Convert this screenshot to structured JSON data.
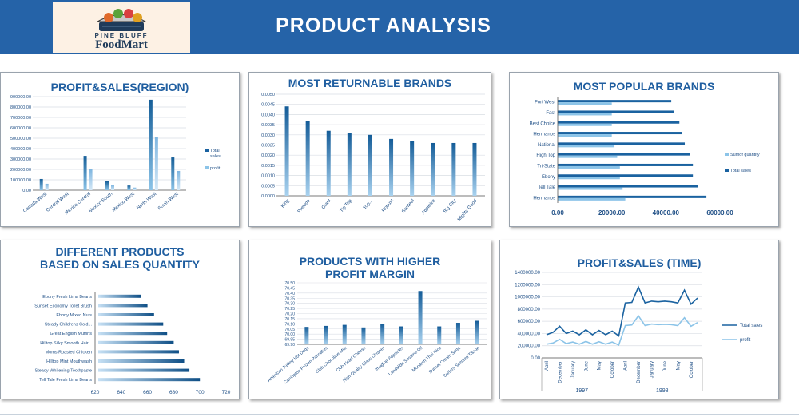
{
  "page": {
    "title": "PRODUCT ANALYSIS"
  },
  "logo": {
    "line1": "PINE BLUFF",
    "line2": "FoodMart"
  },
  "chart_data": [
    {
      "id": "region",
      "type": "bar",
      "title": "PROFIT&SALES(REGION)",
      "categories": [
        "Canada West",
        "Central West",
        "Mexico Central",
        "Mexico South",
        "Mexico West",
        "North West",
        "South West"
      ],
      "series": [
        {
          "name": "Total sales",
          "values": [
            108000,
            0,
            330000,
            85000,
            45000,
            870000,
            315000
          ]
        },
        {
          "name": "profit",
          "values": [
            62000,
            0,
            200000,
            48000,
            25000,
            510000,
            185000
          ]
        }
      ],
      "yticks": [
        "0.00",
        "100000.00",
        "200000.00",
        "300000.00",
        "400000.00",
        "500000.00",
        "600000.00",
        "700000.00",
        "800000.00",
        "900000.00"
      ],
      "ylim": [
        0,
        900000
      ]
    },
    {
      "id": "returnable",
      "type": "bar",
      "title": "MOST RETURNABLE BRANDS",
      "categories": [
        "King",
        "Prelude",
        "Giant",
        "Tip Top",
        "Top...",
        "Robust",
        "Genteel",
        "Appleize",
        "Big City",
        "Mighty Good"
      ],
      "values": [
        0.0044,
        0.0037,
        0.0032,
        0.0031,
        0.003,
        0.0028,
        0.0027,
        0.0026,
        0.0026,
        0.0026
      ],
      "yticks": [
        "0.0000",
        "0.0005",
        "0.0010",
        "0.0015",
        "0.0020",
        "0.0025",
        "0.0030",
        "0.0035",
        "0.0040",
        "0.0045",
        "0.0050"
      ],
      "ylim": [
        0,
        0.005
      ]
    },
    {
      "id": "popular",
      "type": "bar",
      "orientation": "horizontal",
      "title": "MOST POPULAR BRANDS",
      "categories": [
        "Fort West",
        "Fast",
        "Best Choice",
        "Hermanos",
        "National",
        "High Top",
        "Tri-State",
        "Ebony",
        "Tell Tale",
        "Hermanos"
      ],
      "series": [
        {
          "name": "Sumof quantity",
          "values": [
            20000,
            20000,
            20000,
            20000,
            21000,
            22000,
            23000,
            23000,
            24000,
            25000
          ]
        },
        {
          "name": "Total sales",
          "values": [
            42000,
            43000,
            45000,
            46000,
            47000,
            49000,
            50000,
            50000,
            52000,
            55000
          ]
        }
      ],
      "xticks": [
        "0.00",
        "20000.00",
        "40000.00",
        "60000.00"
      ],
      "xlim": [
        0,
        60000
      ]
    },
    {
      "id": "quantity",
      "type": "bar",
      "orientation": "horizontal",
      "title": "DIFFERENT PRODUCTS BASED ON SALES QUANTITY",
      "title_lines": [
        "DIFFERENT PRODUCTS",
        "BASED ON SALES QUANTITY"
      ],
      "categories": [
        "Ebony Fresh Lima Beans",
        "Sunset Economy Toilet Brush",
        "Ebony Mixed Nuts",
        "Steady Childrens Cold...",
        "Great English Muffins",
        "Hilltop Silky Smooth Hair...",
        "Moms Roasted Chicken",
        "Hilltop Mint Mouthwash",
        "Steady Whitening Toothpaste",
        "Tell Tale Fresh Lima Beans"
      ],
      "values": [
        655,
        660,
        665,
        672,
        675,
        680,
        684,
        688,
        692,
        700
      ],
      "xticks": [
        "620",
        "640",
        "660",
        "680",
        "700",
        "720"
      ],
      "xlim": [
        620,
        720
      ]
    },
    {
      "id": "margin",
      "type": "bar",
      "title": "PRODUCTS WITH HIGHER PROFIT MARGIN",
      "title_lines": [
        "PRODUCTS WITH HIGHER",
        "PROFIT MARGIN"
      ],
      "categories": [
        "American Turkey Hot Dogs",
        "Carrington Frozen Pancakes",
        "Club Chocolate Milk",
        "Club Head Cheese",
        "High Quality Glass Cleaner",
        "Imagine Popsicles",
        "Landslide Sesame Oil",
        "Monarch Thai Rice",
        "Sunset Cream Soda",
        "Surfers Scented Tissue"
      ],
      "values": [
        70.07,
        70.08,
        70.09,
        70.065,
        70.1,
        70.075,
        70.42,
        70.075,
        70.11,
        70.13
      ],
      "yticks": [
        "69.90",
        "69.95",
        "70.00",
        "70.05",
        "70.10",
        "70.15",
        "70.20",
        "70.25",
        "70.30",
        "70.35",
        "70.40",
        "70.45",
        "70.50"
      ],
      "ylim": [
        69.9,
        70.5
      ]
    },
    {
      "id": "time",
      "type": "line",
      "title": "PROFIT&SALES (TIME)",
      "x": [
        "April",
        "August",
        "December",
        "February",
        "January",
        "July",
        "June",
        "March",
        "May",
        "November",
        "October",
        "September",
        "April",
        "August",
        "December",
        "February",
        "January",
        "July",
        "June",
        "March",
        "May",
        "November",
        "October",
        "September"
      ],
      "xticks": [
        "April",
        "December",
        "January",
        "June",
        "May",
        "October",
        "April",
        "December",
        "January",
        "June",
        "May",
        "October"
      ],
      "years": [
        "1997",
        "1998"
      ],
      "series": [
        {
          "name": "Total sales",
          "values": [
            380000,
            420000,
            520000,
            400000,
            440000,
            380000,
            460000,
            380000,
            450000,
            380000,
            440000,
            360000,
            900000,
            910000,
            1160000,
            900000,
            930000,
            920000,
            930000,
            920000,
            900000,
            1110000,
            880000,
            980000
          ]
        },
        {
          "name": "profit",
          "values": [
            225000,
            245000,
            305000,
            235000,
            260000,
            225000,
            270000,
            225000,
            265000,
            225000,
            260000,
            210000,
            530000,
            540000,
            690000,
            530000,
            555000,
            545000,
            550000,
            545000,
            530000,
            660000,
            520000,
            580000
          ]
        }
      ],
      "yticks": [
        "0.00",
        "200000.00",
        "400000.00",
        "600000.00",
        "800000.00",
        "1000000.00",
        "1200000.00",
        "1400000.00"
      ],
      "ylim": [
        0,
        1400000
      ]
    }
  ]
}
